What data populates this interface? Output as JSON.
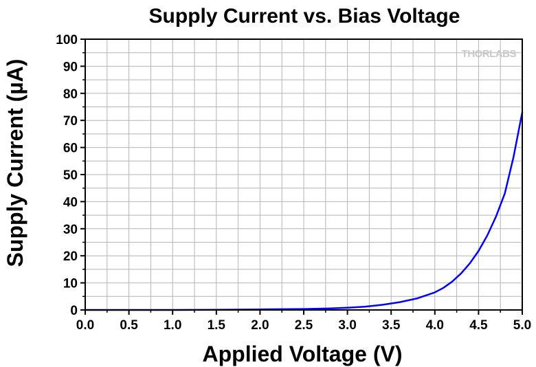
{
  "chart_data": {
    "type": "line",
    "title": "Supply Current vs. Bias Voltage",
    "xlabel": "Applied Voltage (V)",
    "ylabel": "Supply Current (µA)",
    "xlim": [
      0.0,
      5.0
    ],
    "ylim": [
      0,
      100
    ],
    "xticks": [
      "0.0",
      "0.5",
      "1.0",
      "1.5",
      "2.0",
      "2.5",
      "3.0",
      "3.5",
      "4.0",
      "4.5",
      "5.0"
    ],
    "yticks": [
      "0",
      "10",
      "20",
      "30",
      "40",
      "50",
      "60",
      "70",
      "80",
      "90",
      "100"
    ],
    "grid": true,
    "series": [
      {
        "color": "#0000ff",
        "x": [
          0.0,
          0.5,
          1.0,
          1.5,
          2.0,
          2.5,
          2.8,
          3.0,
          3.2,
          3.4,
          3.6,
          3.8,
          4.0,
          4.1,
          4.2,
          4.3,
          4.4,
          4.5,
          4.6,
          4.7,
          4.8,
          4.9,
          5.0
        ],
        "y": [
          0.0,
          0.0,
          0.0,
          0.05,
          0.2,
          0.35,
          0.55,
          0.8,
          1.2,
          1.9,
          2.9,
          4.3,
          6.5,
          8.2,
          10.5,
          13.5,
          17.2,
          21.8,
          27.5,
          34.5,
          43.0,
          56.5,
          73.0
        ]
      }
    ]
  },
  "logo_text": "THORLABS"
}
